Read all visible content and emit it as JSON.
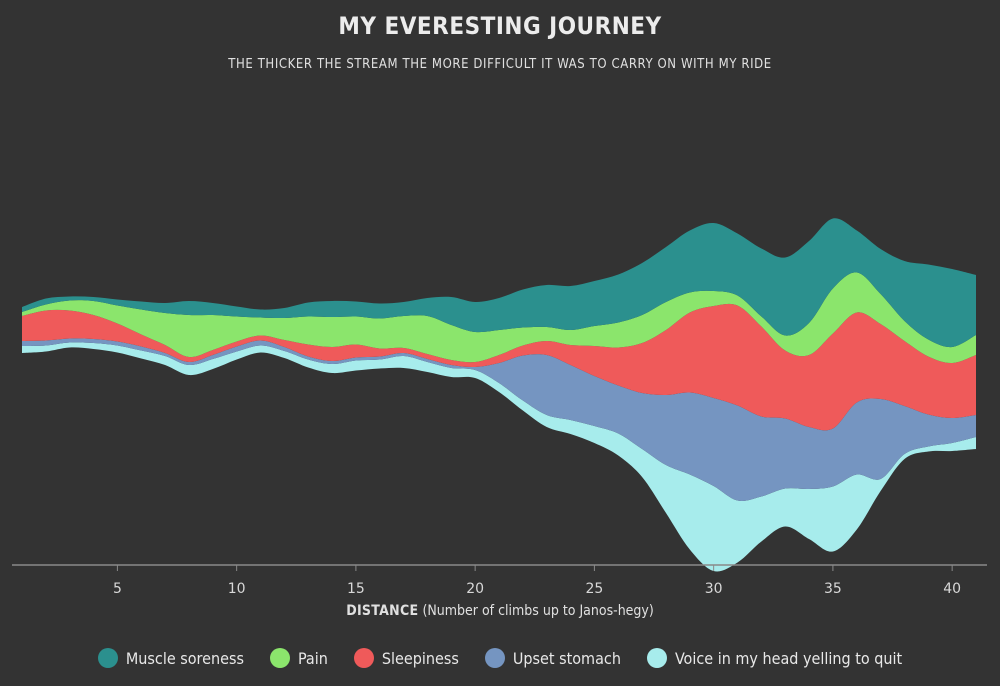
{
  "chart_data": {
    "type": "area",
    "subtype": "streamgraph",
    "title": "MY EVERESTING JOURNEY",
    "subtitle": "THE THICKER THE STREAM THE MORE DIFFICULT IT WAS TO CARRY ON WITH MY RIDE",
    "xlabel_bold": "DISTANCE",
    "xlabel_rest": " (Number of climbs up to Janos-hegy)",
    "x_ticks": [
      5,
      10,
      15,
      20,
      25,
      30,
      35,
      40
    ],
    "x": [
      1,
      2,
      3,
      4,
      5,
      6,
      7,
      8,
      9,
      10,
      11,
      12,
      13,
      14,
      15,
      16,
      17,
      18,
      19,
      20,
      21,
      22,
      23,
      24,
      25,
      26,
      27,
      28,
      29,
      30,
      31,
      32,
      33,
      34,
      35,
      36,
      37,
      38,
      39,
      40,
      41
    ],
    "xlim": [
      1,
      41
    ],
    "series": [
      {
        "name": "Voice in my head yelling to quit",
        "color": "#a7ecec",
        "values": [
          7,
          6,
          5,
          6,
          7,
          8,
          9,
          10,
          10,
          8,
          7,
          7,
          8,
          9,
          10,
          9,
          12,
          10,
          9,
          8,
          9,
          10,
          12,
          14,
          17,
          22,
          28,
          48,
          75,
          85,
          62,
          45,
          38,
          50,
          65,
          55,
          12,
          5,
          5,
          8,
          12
        ]
      },
      {
        "name": "Upset stomach",
        "color": "#7595c1",
        "values": [
          5,
          5,
          4,
          4,
          4,
          4,
          3,
          3,
          4,
          5,
          5,
          4,
          3,
          3,
          3,
          3,
          3,
          3,
          3,
          3,
          20,
          45,
          60,
          55,
          50,
          48,
          56,
          70,
          82,
          88,
          95,
          80,
          70,
          62,
          58,
          72,
          80,
          48,
          32,
          25,
          22
        ]
      },
      {
        "name": "Sleepiness",
        "color": "#ef5a5a",
        "values": [
          25,
          30,
          28,
          24,
          18,
          12,
          8,
          5,
          5,
          5,
          5,
          7,
          12,
          14,
          13,
          8,
          5,
          5,
          5,
          5,
          8,
          10,
          14,
          20,
          30,
          38,
          50,
          65,
          80,
          92,
          100,
          90,
          68,
          72,
          95,
          90,
          75,
          65,
          58,
          55,
          60
        ]
      },
      {
        "name": "Pain",
        "color": "#8be56c",
        "values": [
          4,
          6,
          10,
          14,
          18,
          25,
          32,
          42,
          35,
          25,
          18,
          22,
          28,
          30,
          28,
          30,
          32,
          38,
          35,
          30,
          25,
          18,
          14,
          15,
          20,
          25,
          28,
          28,
          20,
          15,
          10,
          10,
          15,
          32,
          45,
          40,
          30,
          20,
          17,
          16,
          20
        ]
      },
      {
        "name": "Muscle soreness",
        "color": "#2b908e",
        "values": [
          5,
          6,
          4,
          4,
          6,
          8,
          10,
          14,
          12,
          10,
          8,
          10,
          14,
          16,
          15,
          15,
          14,
          18,
          28,
          30,
          32,
          38,
          42,
          44,
          45,
          48,
          52,
          55,
          62,
          68,
          62,
          68,
          78,
          82,
          70,
          42,
          45,
          60,
          75,
          78,
          60
        ]
      }
    ],
    "legend_order": [
      "Muscle soreness",
      "Pain",
      "Sleepiness",
      "Upset stomach",
      "Voice in my head yelling to quit"
    ],
    "legend_placement": "bottom-center",
    "grid": false
  }
}
